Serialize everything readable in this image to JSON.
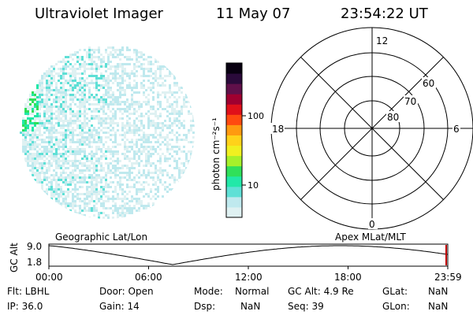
{
  "header": {
    "instrument": "Ultraviolet Imager",
    "date": "11 May 07",
    "time": "23:54:22 UT"
  },
  "colorbar": {
    "unit_label": "photon cm⁻²s⁻¹",
    "ticks": [
      "100",
      "10"
    ]
  },
  "polar_grid": {
    "mlt_top": "12",
    "mlt_bottom": "0",
    "mlt_left": "18",
    "mlt_right": "6",
    "lat_labels": [
      "60",
      "70",
      "80"
    ]
  },
  "orbit_plot": {
    "y_axis_label": "GC Alt",
    "y_ticks": [
      "9.0",
      "1.8"
    ],
    "left_title": "Geographic Lat/Lon",
    "right_title": "Apex MLat/MLT",
    "x_ticks": [
      "00:00",
      "06:00",
      "12:00",
      "18:00",
      "23:59"
    ]
  },
  "info": {
    "flt": "Flt: LBHL",
    "ip": "IP: 36.0",
    "door": "Door: Open",
    "gain": "Gain: 14",
    "mode_label": "Mode:",
    "mode_value": "Normal",
    "dsp_label": "Dsp:",
    "dsp_value": "NaN",
    "gcalt": "GC Alt: 4.9 Re",
    "seq": "Seq: 39",
    "glat_label": "GLat:",
    "glat_value": "NaN",
    "glon_label": "GLon:",
    "glon_value": "NaN"
  },
  "colors": {
    "scale": [
      "#dff1f2",
      "#bfe9ee",
      "#5fe0d6",
      "#22e8a8",
      "#30e05a",
      "#a6f02a",
      "#f0f020",
      "#ffd21a",
      "#ff9a10",
      "#ff4a10",
      "#e0101a",
      "#a00030",
      "#60104a",
      "#2a0a3a",
      "#080010"
    ]
  }
}
